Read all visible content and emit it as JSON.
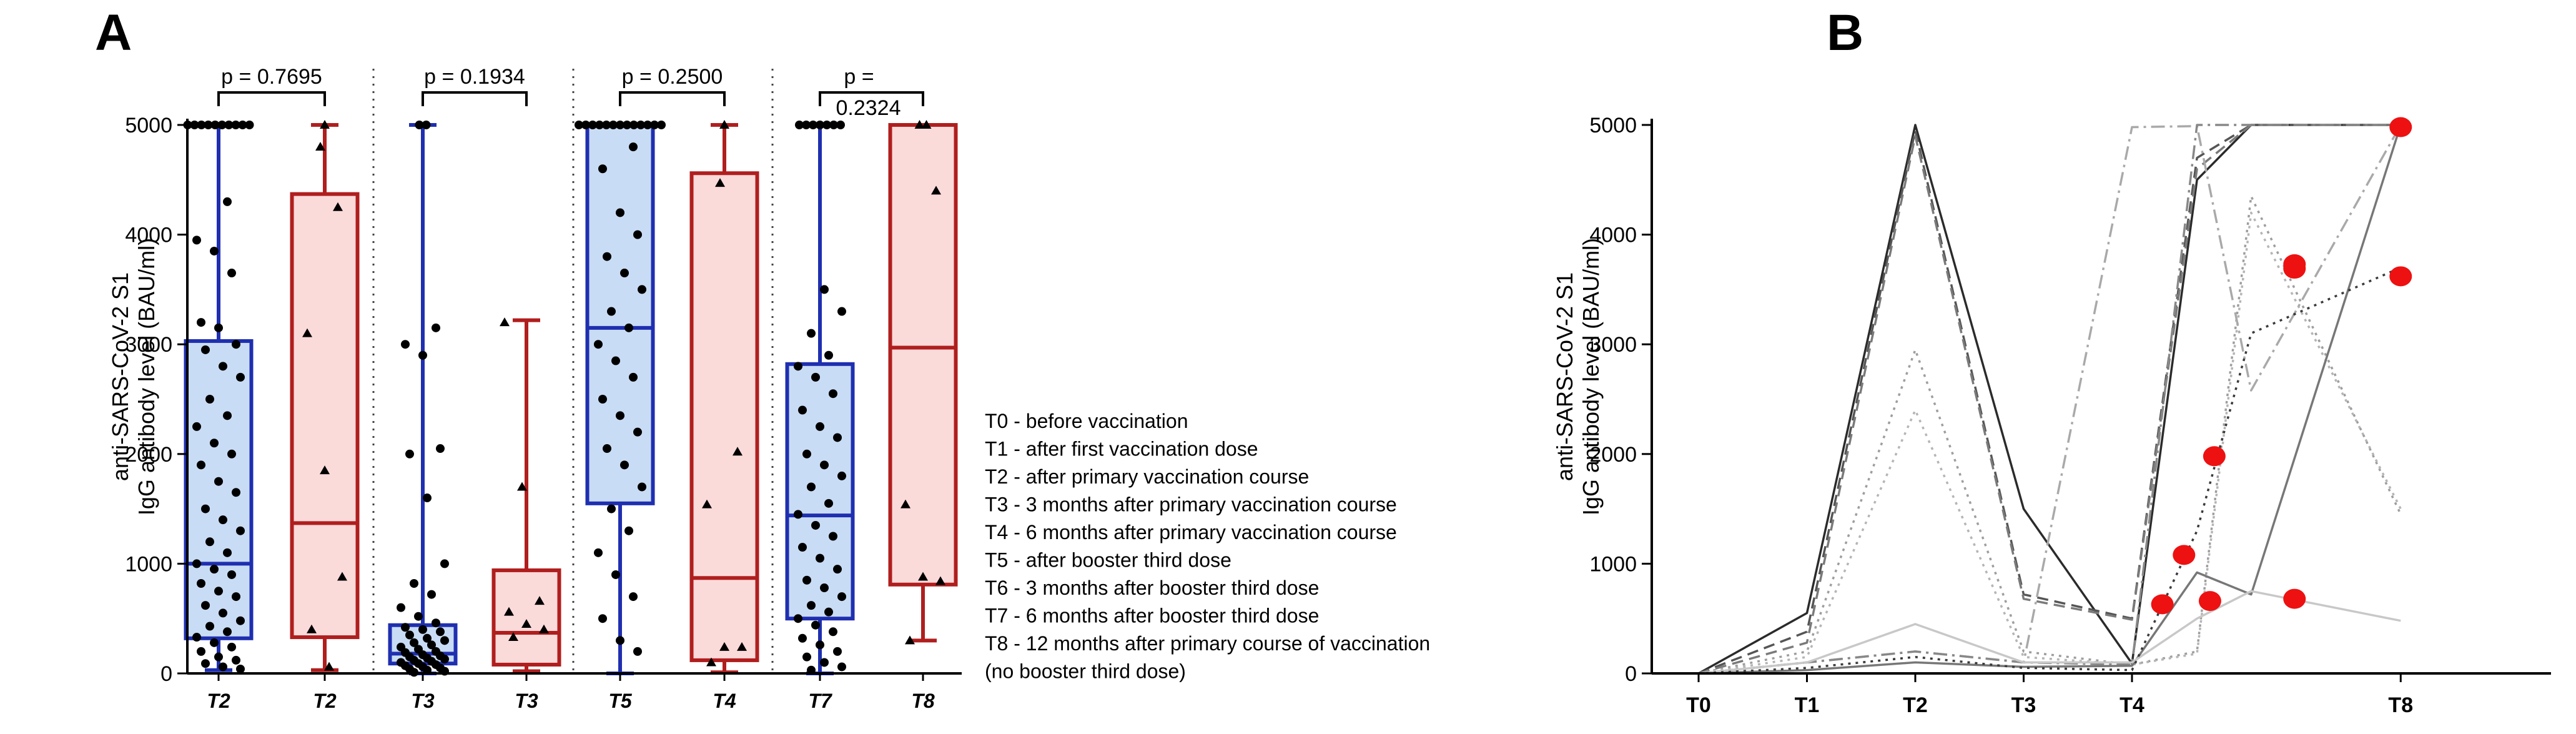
{
  "panel_a_label": "A",
  "panel_b_label": "B",
  "colors": {
    "blue_line": "#1f2fb0",
    "blue_fill": "#c9dcf5",
    "red_line": "#b01e1e",
    "red_fill": "#fbdada",
    "points": "#000000",
    "red_dot": "#ee1111"
  },
  "legend": [
    "T0 - before vaccination",
    "T1 - after first vaccination dose",
    "T2 - after primary vaccination course",
    "T3 - 3 months after primary vaccination course",
    "T4 - 6 months after primary vaccination course",
    "T5 - after booster third dose",
    "T6 - 3 months after booster third dose",
    "T7 - 6 months after booster third dose",
    "T8 - 12 months after primary course of vaccination",
    "(no booster third dose)"
  ],
  "chart_data": [
    {
      "type": "box",
      "panel": "A",
      "ylabel_line1": "anti-SARS-CoV-2 S1",
      "ylabel_line2": "IgG antibody level (BAU/ml)",
      "ylim": [
        0,
        5000
      ],
      "yticks": [
        0,
        1000,
        2000,
        3000,
        4000,
        5000
      ],
      "categories": [
        "T2",
        "T2",
        "T3",
        "T3",
        "T5",
        "T4",
        "T7",
        "T8"
      ],
      "comparisons": [
        {
          "groups": [
            0,
            1
          ],
          "label": "p = 0.7695"
        },
        {
          "groups": [
            2,
            3
          ],
          "label": "p = 0.1934"
        },
        {
          "groups": [
            4,
            5
          ],
          "label": "p = 0.2500"
        },
        {
          "groups": [
            6,
            7
          ],
          "label_line1": "p =",
          "label_line2": "0.2324"
        }
      ],
      "boxes": [
        {
          "category": "T2",
          "color": "blue",
          "min": 30,
          "q1": 320,
          "median": 1000,
          "q3": 3030,
          "max": 5000,
          "marker": "circle",
          "points": [
            5000,
            5000,
            5000,
            5000,
            5000,
            5000,
            5000,
            5000,
            5000,
            5000,
            4300,
            3950,
            3850,
            3650,
            3200,
            3150,
            3000,
            2950,
            2800,
            2700,
            2500,
            2350,
            2250,
            2100,
            2000,
            1900,
            1750,
            1650,
            1500,
            1400,
            1300,
            1200,
            1100,
            1000,
            950,
            900,
            820,
            750,
            700,
            620,
            550,
            480,
            430,
            380,
            330,
            280,
            240,
            200,
            150,
            120,
            90,
            60,
            40
          ]
        },
        {
          "category": "T2",
          "color": "red",
          "min": 30,
          "q1": 330,
          "median": 1370,
          "q3": 4370,
          "max": 5000,
          "marker": "triangle",
          "points": [
            5000,
            4800,
            4250,
            3100,
            1850,
            880,
            400,
            60
          ]
        },
        {
          "category": "T3",
          "color": "blue",
          "min": 0,
          "q1": 90,
          "median": 180,
          "q3": 440,
          "max": 5000,
          "marker": "circle",
          "points": [
            5000,
            5000,
            3150,
            3000,
            2900,
            2050,
            2000,
            1600,
            1000,
            820,
            720,
            600,
            520,
            460,
            420,
            400,
            380,
            350,
            320,
            300,
            280,
            260,
            240,
            220,
            200,
            190,
            170,
            160,
            150,
            140,
            130,
            120,
            110,
            100,
            90,
            80,
            70,
            60,
            50,
            40,
            30,
            20,
            10
          ]
        },
        {
          "category": "T3",
          "color": "red",
          "min": 20,
          "q1": 80,
          "median": 370,
          "q3": 940,
          "max": 3220,
          "marker": "triangle",
          "points": [
            3200,
            1700,
            660,
            560,
            450,
            400,
            330
          ]
        },
        {
          "category": "T5",
          "color": "blue",
          "min": 0,
          "q1": 1550,
          "median": 3150,
          "q3": 5000,
          "max": 5000,
          "marker": "circle",
          "points": [
            5000,
            5000,
            5000,
            5000,
            5000,
            5000,
            5000,
            5000,
            5000,
            5000,
            5000,
            5000,
            5000,
            4800,
            4600,
            4200,
            4000,
            3800,
            3650,
            3500,
            3300,
            3150,
            3000,
            2850,
            2700,
            2500,
            2350,
            2200,
            2050,
            1900,
            1700,
            1500,
            1300,
            1100,
            900,
            700,
            500,
            300,
            200
          ]
        },
        {
          "category": "T4",
          "color": "red",
          "min": 10,
          "q1": 120,
          "median": 870,
          "q3": 4560,
          "max": 5000,
          "marker": "triangle",
          "points": [
            5000,
            4470,
            2020,
            1540,
            240,
            240,
            100
          ]
        },
        {
          "category": "T7",
          "color": "blue",
          "min": 0,
          "q1": 500,
          "median": 1440,
          "q3": 2820,
          "max": 5000,
          "marker": "circle",
          "points": [
            5000,
            5000,
            5000,
            5000,
            5000,
            5000,
            5000,
            3500,
            3300,
            3100,
            2900,
            2800,
            2700,
            2550,
            2400,
            2250,
            2150,
            2000,
            1900,
            1800,
            1700,
            1550,
            1450,
            1350,
            1250,
            1150,
            1050,
            950,
            850,
            780,
            700,
            620,
            560,
            500,
            440,
            380,
            320,
            260,
            200,
            150,
            100,
            60,
            30
          ]
        },
        {
          "category": "T8",
          "color": "red",
          "min": 300,
          "q1": 810,
          "median": 2970,
          "q3": 5000,
          "max": 5000,
          "marker": "triangle",
          "points": [
            5000,
            5000,
            4400,
            1540,
            880,
            840,
            300
          ]
        }
      ]
    },
    {
      "type": "line",
      "panel": "B",
      "ylabel_line1": "anti-SARS-CoV-2 S1",
      "ylabel_line2": "IgG antibody level (BAU/ml)",
      "ylim": [
        0,
        5000
      ],
      "yticks": [
        0,
        1000,
        2000,
        3000,
        4000,
        5000
      ],
      "x_labels": [
        "T0",
        "T1",
        "T2",
        "T3",
        "T4",
        "T8"
      ],
      "series": [
        {
          "name": "s1",
          "color": "#2b2b2b",
          "dash": "solid",
          "x": [
            0,
            1,
            2,
            3,
            4,
            4.6,
            5.1,
            6
          ],
          "y": [
            0,
            550,
            5000,
            1500,
            90,
            4500,
            5000,
            5000
          ]
        },
        {
          "name": "s2",
          "color": "#555555",
          "dash": "dashed",
          "x": [
            0,
            1,
            2,
            3,
            4,
            4.6,
            5.1,
            6
          ],
          "y": [
            0,
            380,
            4950,
            720,
            500,
            4700,
            5000,
            5000
          ]
        },
        {
          "name": "s3",
          "color": "#7a7a7a",
          "dash": "dashed",
          "x": [
            0,
            1,
            2,
            3,
            4,
            4.6,
            5.1,
            6
          ],
          "y": [
            0,
            280,
            4900,
            680,
            490,
            4600,
            5000,
            5000
          ]
        },
        {
          "name": "s4",
          "color": "#9e9e9e",
          "dash": "dotted",
          "x": [
            0,
            1,
            2,
            3,
            4,
            4.6,
            5.1,
            6
          ],
          "y": [
            0,
            200,
            2950,
            200,
            80,
            200,
            4350,
            1450
          ]
        },
        {
          "name": "s5",
          "color": "#b5b5b5",
          "dash": "dotted",
          "x": [
            0,
            1,
            2,
            3,
            4,
            4.6,
            5.1,
            6
          ],
          "y": [
            0,
            150,
            2400,
            150,
            80,
            180,
            4200,
            1500
          ]
        },
        {
          "name": "s6",
          "color": "#a9a9a9",
          "dash": "dashdot",
          "x": [
            0,
            1,
            2,
            3,
            4,
            4.6,
            5.1,
            6
          ],
          "y": [
            0,
            100,
            200,
            100,
            4980,
            4990,
            2580,
            5000
          ]
        },
        {
          "name": "s7",
          "color": "#888888",
          "dash": "dashdot",
          "x": [
            0,
            1,
            2,
            3,
            4,
            4.6,
            5.1,
            6
          ],
          "y": [
            0,
            100,
            200,
            100,
            80,
            5000,
            5000,
            5000
          ]
        },
        {
          "name": "s8",
          "color": "#777777",
          "dash": "solid",
          "x": [
            0,
            1,
            2,
            3,
            4,
            4.6,
            5.1,
            6
          ],
          "y": [
            0,
            30,
            100,
            60,
            70,
            920,
            720,
            5000
          ]
        },
        {
          "name": "s9",
          "color": "#c8c8c8",
          "dash": "solid",
          "x": [
            0,
            1,
            2,
            3,
            4,
            4.6,
            5.1,
            6
          ],
          "y": [
            0,
            100,
            450,
            100,
            100,
            500,
            750,
            480
          ]
        },
        {
          "name": "s10",
          "color": "#3a3a3a",
          "dash": "dotted",
          "x": [
            0,
            1,
            2,
            3,
            4,
            4.6,
            5.1,
            6
          ],
          "y": [
            0,
            50,
            150,
            50,
            30,
            1300,
            3100,
            3700
          ]
        }
      ],
      "points": [
        {
          "x": 4.28,
          "y": 630
        },
        {
          "x": 4.48,
          "y": 1080
        },
        {
          "x": 4.72,
          "y": 660
        },
        {
          "x": 4.76,
          "y": 1980
        },
        {
          "x": 5.5,
          "y": 3730
        },
        {
          "x": 5.5,
          "y": 3690
        },
        {
          "x": 5.5,
          "y": 680
        },
        {
          "x": 6.48,
          "y": 4980
        },
        {
          "x": 6.48,
          "y": 3620
        }
      ]
    }
  ]
}
